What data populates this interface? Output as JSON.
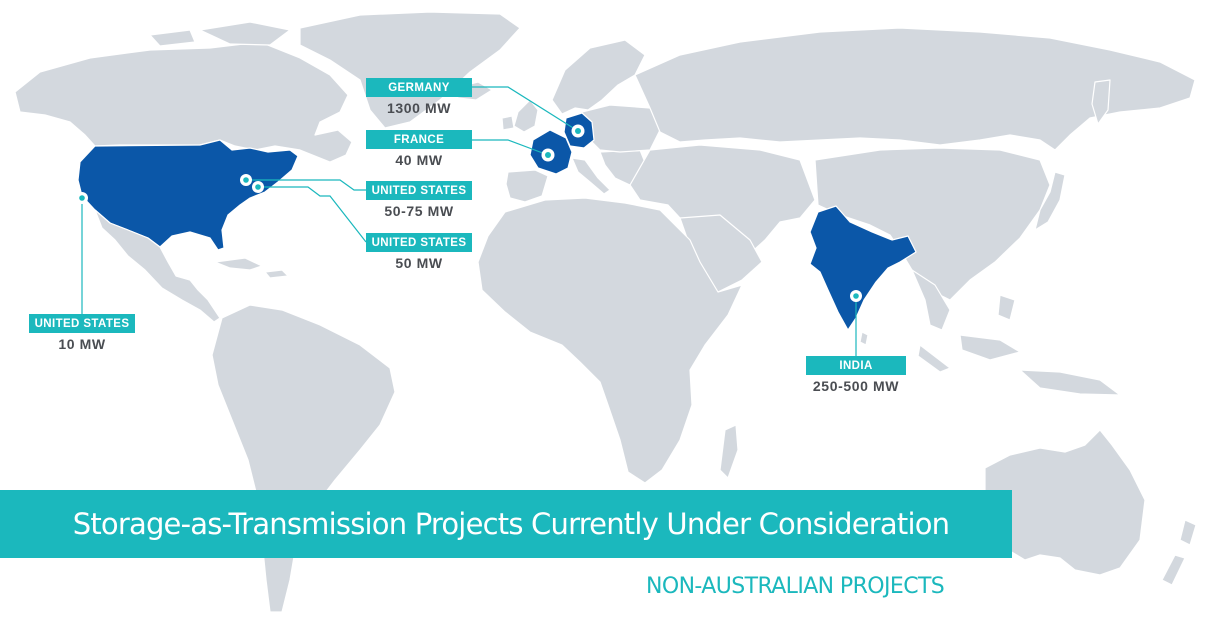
{
  "title": "Storage-as-Transmission Projects Currently Under Consideration",
  "subtitle": "NON-AUSTRALIAN PROJECTS",
  "colors": {
    "land": "#d3d8de",
    "highlighted_country": "#0b57a8",
    "accent": "#1bb8bd",
    "value_text": "#4a4d52"
  },
  "highlighted_countries": [
    "United States",
    "France",
    "Germany",
    "India"
  ],
  "locations": [
    {
      "id": "germany",
      "name": "GERMANY",
      "value": "1300 MW"
    },
    {
      "id": "france",
      "name": "FRANCE",
      "value": "40 MW"
    },
    {
      "id": "us-east-1",
      "name": "UNITED STATES",
      "value": "50-75 MW"
    },
    {
      "id": "us-east-2",
      "name": "UNITED STATES",
      "value": "50 MW"
    },
    {
      "id": "us-west",
      "name": "UNITED STATES",
      "value": "10 MW"
    },
    {
      "id": "india",
      "name": "INDIA",
      "value": "250-500 MW"
    }
  ]
}
